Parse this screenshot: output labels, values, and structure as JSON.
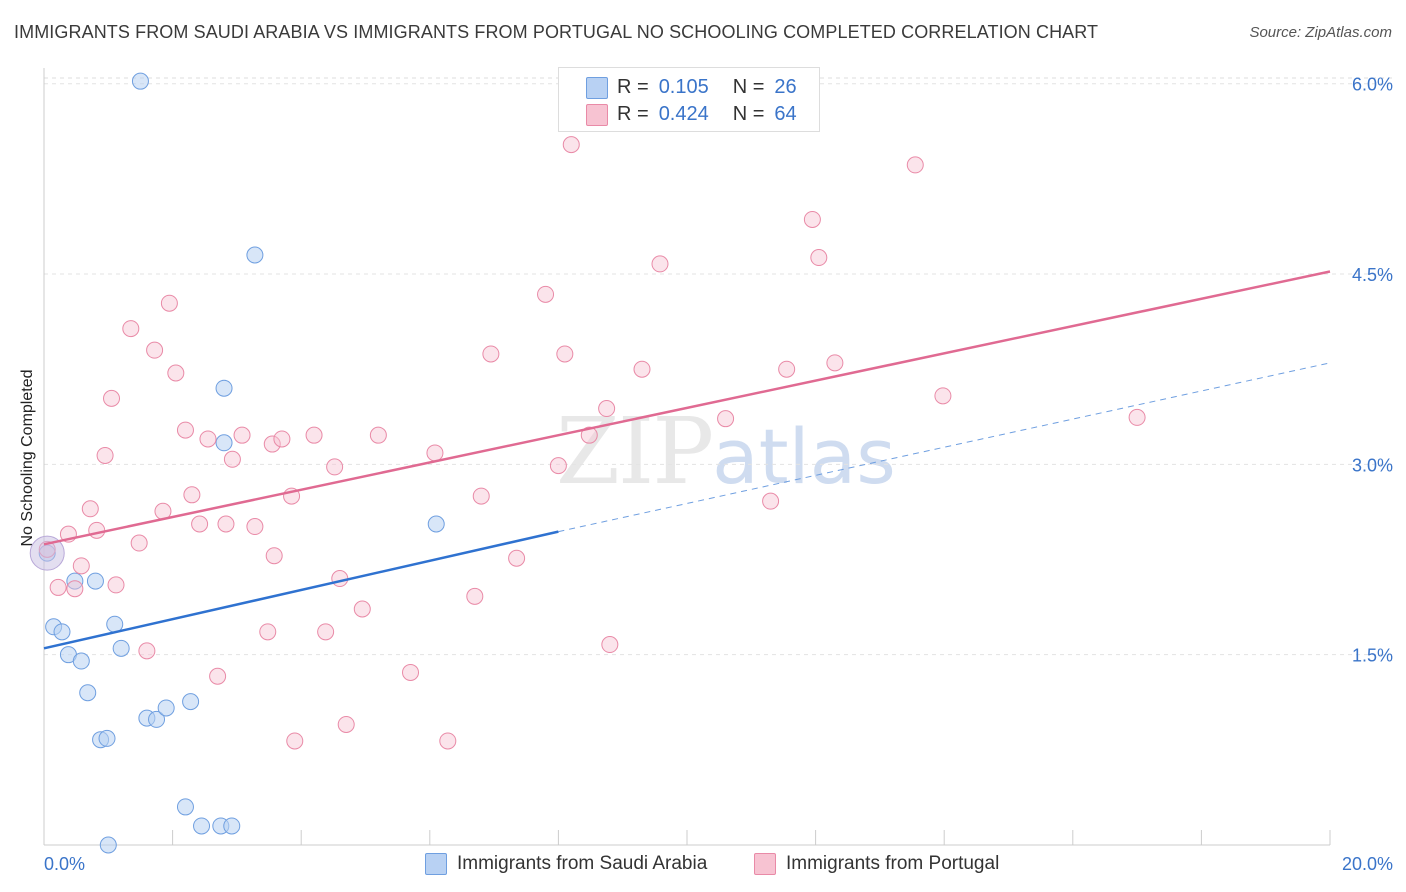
{
  "title": "IMMIGRANTS FROM SAUDI ARABIA VS IMMIGRANTS FROM PORTUGAL NO SCHOOLING COMPLETED CORRELATION CHART",
  "source": "Source: ZipAtlas.com",
  "watermark": {
    "zip": "ZIP",
    "atlas": "atlas"
  },
  "legend": {
    "r_label": "R =",
    "n_label": "N =",
    "series": [
      {
        "name": "Immigrants from Saudi Arabia",
        "r": "0.105",
        "n": "26",
        "fill": "#b8d1f3",
        "stroke": "#6f9fe0"
      },
      {
        "name": "Immigrants from Portugal",
        "r": "0.424",
        "n": "64",
        "fill": "#f7c3d2",
        "stroke": "#e98aa7"
      }
    ]
  },
  "chart_data": {
    "type": "scatter",
    "title": "IMMIGRANTS FROM SAUDI ARABIA VS IMMIGRANTS FROM PORTUGAL NO SCHOOLING COMPLETED CORRELATION CHART",
    "xlabel": "",
    "ylabel": "No Schooling Completed",
    "xlim": [
      0,
      20
    ],
    "ylim": [
      0,
      6.25
    ],
    "x_tick_labels": [
      "0.0%",
      "20.0%"
    ],
    "y_ticks": [
      1.5,
      3.0,
      4.5,
      6.0
    ],
    "y_tick_labels": [
      "1.5%",
      "3.0%",
      "4.5%",
      "6.0%"
    ],
    "series": [
      {
        "name": "Immigrants from Saudi Arabia",
        "color": "#6f9fe0",
        "points": [
          [
            0.05,
            2.3
          ],
          [
            0.15,
            1.72
          ],
          [
            0.28,
            1.68
          ],
          [
            0.38,
            1.5
          ],
          [
            0.48,
            2.08
          ],
          [
            0.58,
            1.45
          ],
          [
            0.68,
            1.2
          ],
          [
            0.8,
            2.08
          ],
          [
            0.88,
            0.83
          ],
          [
            0.98,
            0.84
          ],
          [
            1.1,
            1.74
          ],
          [
            1.2,
            1.55
          ],
          [
            1.5,
            6.02
          ],
          [
            1.6,
            1.0
          ],
          [
            1.75,
            0.99
          ],
          [
            1.9,
            1.08
          ],
          [
            2.2,
            0.3
          ],
          [
            2.28,
            1.13
          ],
          [
            2.45,
            0.15
          ],
          [
            2.75,
            0.15
          ],
          [
            2.8,
            3.17
          ],
          [
            2.92,
            0.15
          ],
          [
            2.8,
            3.6
          ],
          [
            3.28,
            4.65
          ],
          [
            6.1,
            2.53
          ],
          [
            1.0,
            0.0
          ]
        ],
        "trend": {
          "x0": 0,
          "y0": 1.55,
          "x1": 8.0,
          "y1": 2.47,
          "dash_x1": 20,
          "dash_y1": 3.8
        }
      },
      {
        "name": "Immigrants from Portugal",
        "color": "#e98aa7",
        "points": [
          [
            0.05,
            2.33
          ],
          [
            0.22,
            2.03
          ],
          [
            0.38,
            2.45
          ],
          [
            0.48,
            2.02
          ],
          [
            0.58,
            2.2
          ],
          [
            0.72,
            2.65
          ],
          [
            0.82,
            2.48
          ],
          [
            0.95,
            3.07
          ],
          [
            1.05,
            3.52
          ],
          [
            1.12,
            2.05
          ],
          [
            1.35,
            4.07
          ],
          [
            1.48,
            2.38
          ],
          [
            1.6,
            1.53
          ],
          [
            1.72,
            3.9
          ],
          [
            1.85,
            2.63
          ],
          [
            1.95,
            4.27
          ],
          [
            2.05,
            3.72
          ],
          [
            2.2,
            3.27
          ],
          [
            2.3,
            2.76
          ],
          [
            2.42,
            2.53
          ],
          [
            2.55,
            3.2
          ],
          [
            2.7,
            1.33
          ],
          [
            2.83,
            2.53
          ],
          [
            2.93,
            3.04
          ],
          [
            3.08,
            3.23
          ],
          [
            3.28,
            2.51
          ],
          [
            3.48,
            1.68
          ],
          [
            3.55,
            3.16
          ],
          [
            3.58,
            2.28
          ],
          [
            3.7,
            3.2
          ],
          [
            3.85,
            2.75
          ],
          [
            3.9,
            0.82
          ],
          [
            4.2,
            3.23
          ],
          [
            4.38,
            1.68
          ],
          [
            4.52,
            2.98
          ],
          [
            4.6,
            2.1
          ],
          [
            4.7,
            0.95
          ],
          [
            4.95,
            1.86
          ],
          [
            5.2,
            3.23
          ],
          [
            5.7,
            1.36
          ],
          [
            6.08,
            3.09
          ],
          [
            6.28,
            0.82
          ],
          [
            6.7,
            1.96
          ],
          [
            6.8,
            2.75
          ],
          [
            6.95,
            3.87
          ],
          [
            7.35,
            2.26
          ],
          [
            7.8,
            4.34
          ],
          [
            8.0,
            2.99
          ],
          [
            8.1,
            3.87
          ],
          [
            8.2,
            5.52
          ],
          [
            8.48,
            3.23
          ],
          [
            8.75,
            3.44
          ],
          [
            8.8,
            1.58
          ],
          [
            9.3,
            3.75
          ],
          [
            9.58,
            4.58
          ],
          [
            10.6,
            3.36
          ],
          [
            11.3,
            2.71
          ],
          [
            11.55,
            3.75
          ],
          [
            11.95,
            4.93
          ],
          [
            12.05,
            4.63
          ],
          [
            12.3,
            3.8
          ],
          [
            13.55,
            5.36
          ],
          [
            13.98,
            3.54
          ],
          [
            17.0,
            3.37
          ]
        ],
        "trend": {
          "x0": 0,
          "y0": 2.37,
          "x1": 20,
          "y1": 4.52
        }
      }
    ]
  }
}
